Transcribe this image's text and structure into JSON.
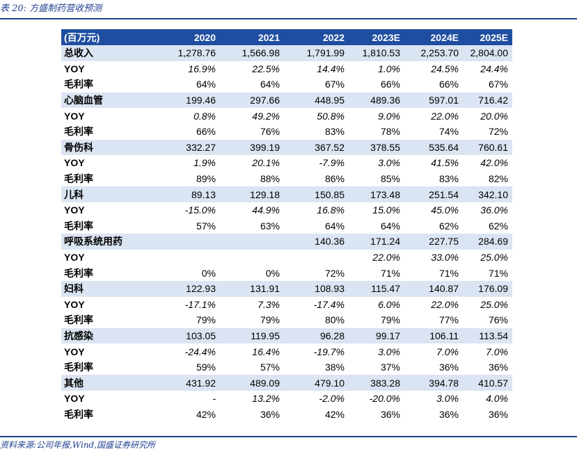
{
  "caption": "表 20:  方盛制药营收预测",
  "header": [
    "(百万元)",
    "2020",
    "2021",
    "2022",
    "2023E",
    "2024E",
    "2025E"
  ],
  "rows": [
    {
      "label": "总收入",
      "type": "main",
      "values": [
        "1,278.76",
        "1,566.98",
        "1,791.99",
        "1,810.53",
        "2,253.70",
        "2,804.00"
      ]
    },
    {
      "label": "YOY",
      "type": "yoy",
      "values": [
        "16.9%",
        "22.5%",
        "14.4%",
        "1.0%",
        "24.5%",
        "24.4%"
      ]
    },
    {
      "label": "毛利率",
      "type": "margin",
      "values": [
        "64%",
        "64%",
        "67%",
        "66%",
        "66%",
        "67%"
      ]
    },
    {
      "label": "心脑血管",
      "type": "main",
      "values": [
        "199.46",
        "297.66",
        "448.95",
        "489.36",
        "597.01",
        "716.42"
      ]
    },
    {
      "label": "YOY",
      "type": "yoy",
      "values": [
        "0.8%",
        "49.2%",
        "50.8%",
        "9.0%",
        "22.0%",
        "20.0%"
      ]
    },
    {
      "label": "毛利率",
      "type": "margin",
      "values": [
        "66%",
        "76%",
        "83%",
        "78%",
        "74%",
        "72%"
      ]
    },
    {
      "label": "骨伤科",
      "type": "main",
      "values": [
        "332.27",
        "399.19",
        "367.52",
        "378.55",
        "535.64",
        "760.61"
      ]
    },
    {
      "label": "YOY",
      "type": "yoy",
      "values": [
        "1.9%",
        "20.1%",
        "-7.9%",
        "3.0%",
        "41.5%",
        "42.0%"
      ]
    },
    {
      "label": "毛利率",
      "type": "margin",
      "values": [
        "89%",
        "88%",
        "86%",
        "85%",
        "83%",
        "82%"
      ]
    },
    {
      "label": "儿科",
      "type": "main",
      "values": [
        "89.13",
        "129.18",
        "150.85",
        "173.48",
        "251.54",
        "342.10"
      ]
    },
    {
      "label": "YOY",
      "type": "yoy",
      "values": [
        "-15.0%",
        "44.9%",
        "16.8%",
        "15.0%",
        "45.0%",
        "36.0%"
      ]
    },
    {
      "label": "毛利率",
      "type": "margin",
      "values": [
        "57%",
        "63%",
        "64%",
        "64%",
        "62%",
        "62%"
      ]
    },
    {
      "label": "呼吸系统用药",
      "type": "main",
      "values": [
        "",
        "",
        "140.36",
        "171.24",
        "227.75",
        "284.69"
      ]
    },
    {
      "label": "YOY",
      "type": "yoy",
      "values": [
        "",
        "",
        "",
        "22.0%",
        "33.0%",
        "25.0%"
      ]
    },
    {
      "label": "毛利率",
      "type": "margin",
      "values": [
        "0%",
        "0%",
        "72%",
        "71%",
        "71%",
        "71%"
      ]
    },
    {
      "label": "妇科",
      "type": "main",
      "values": [
        "122.93",
        "131.91",
        "108.93",
        "115.47",
        "140.87",
        "176.09"
      ]
    },
    {
      "label": "YOY",
      "type": "yoy",
      "values": [
        "-17.1%",
        "7.3%",
        "-17.4%",
        "6.0%",
        "22.0%",
        "25.0%"
      ]
    },
    {
      "label": "毛利率",
      "type": "margin",
      "values": [
        "79%",
        "79%",
        "80%",
        "79%",
        "77%",
        "76%"
      ]
    },
    {
      "label": "抗感染",
      "type": "main",
      "values": [
        "103.05",
        "119.95",
        "96.28",
        "99.17",
        "106.11",
        "113.54"
      ]
    },
    {
      "label": "YOY",
      "type": "yoy",
      "values": [
        "-24.4%",
        "16.4%",
        "-19.7%",
        "3.0%",
        "7.0%",
        "7.0%"
      ]
    },
    {
      "label": "毛利率",
      "type": "margin",
      "values": [
        "59%",
        "57%",
        "38%",
        "37%",
        "36%",
        "36%"
      ]
    },
    {
      "label": "其他",
      "type": "main",
      "values": [
        "431.92",
        "489.09",
        "479.10",
        "383.28",
        "394.78",
        "410.57"
      ]
    },
    {
      "label": "YOY",
      "type": "yoy",
      "values": [
        "-",
        "13.2%",
        "-2.0%",
        "-20.0%",
        "3.0%",
        "4.0%"
      ]
    },
    {
      "label": "毛利率",
      "type": "margin",
      "values": [
        "42%",
        "36%",
        "42%",
        "36%",
        "36%",
        "36%"
      ]
    }
  ],
  "source": "资料来源:公司年报,Wind,国盛证券研究所",
  "colors": {
    "header_bg": "#1f4ea0",
    "shade_bg": "#dbe4f2",
    "accent": "#1f3f8f"
  }
}
